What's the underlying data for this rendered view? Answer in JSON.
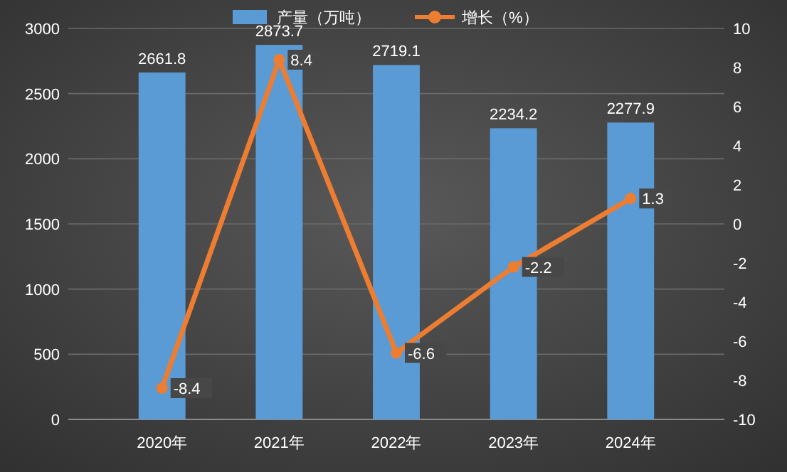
{
  "chart_data": {
    "type": "bar",
    "categories": [
      "2020年",
      "2021年",
      "2022年",
      "2023年",
      "2024年"
    ],
    "series": [
      {
        "name": "产量（万吨）",
        "color": "#5b9bd5",
        "values": [
          2661.8,
          2873.7,
          2719.1,
          2234.2,
          2277.9
        ]
      },
      {
        "name": "增长（%）",
        "type": "line",
        "axis": "y2",
        "color": "#ed7d31",
        "values": [
          -8.4,
          8.4,
          -6.6,
          -2.2,
          1.3
        ]
      }
    ],
    "ylim": [
      0,
      3000
    ],
    "yticks": [
      0,
      500,
      1000,
      1500,
      2000,
      2500,
      3000
    ],
    "y2lim": [
      -10,
      10
    ],
    "y2ticks": [
      -10,
      -8,
      -6,
      -4,
      -2,
      0,
      2,
      4,
      6,
      8,
      10
    ],
    "data_labels": true,
    "grid": "y",
    "legend": "top",
    "marker": "circle",
    "line_style": "solid"
  }
}
